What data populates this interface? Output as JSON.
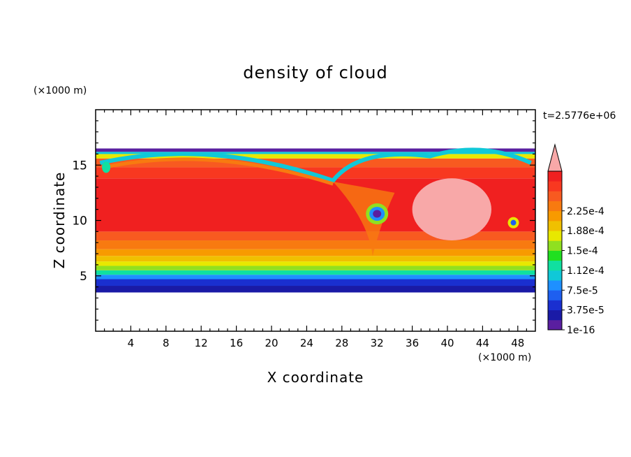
{
  "chart_data": {
    "type": "heatmap",
    "title": "density of cloud",
    "xlabel": "X coordinate",
    "ylabel": "Z coordinate",
    "x_unit": "(×1000 m)",
    "y_unit": "(×1000 m)",
    "time_label": "t=2.5776e+06",
    "xlim": [
      0,
      50
    ],
    "ylim": [
      0,
      20
    ],
    "x_ticks": [
      "4",
      "8",
      "12",
      "16",
      "20",
      "24",
      "28",
      "32",
      "36",
      "40",
      "44",
      "48"
    ],
    "y_ticks": [
      "5",
      "10",
      "15"
    ],
    "colorbar": {
      "labels": [
        "1e-16",
        "3.75e-5",
        "7.5e-5",
        "1.12e-4",
        "1.5e-4",
        "1.88e-4",
        "2.25e-4"
      ],
      "colors": [
        "#5a1fa0",
        "#1a1aa6",
        "#1a2fd0",
        "#1e5ff0",
        "#1e90ff",
        "#10c8d8",
        "#10e0a0",
        "#20e020",
        "#90e020",
        "#e8e800",
        "#f0c000",
        "#f89a00",
        "#f87a10",
        "#f85a20",
        "#f83820",
        "#f02020"
      ],
      "extend_color": "#f8a8a8"
    },
    "field": {
      "domain_x": [
        0,
        50
      ],
      "z_bottom": 3.5,
      "z_top_approx": 16.5,
      "features": [
        {
          "name": "core",
          "z_range": [
            7,
            14
          ],
          "value": 0.00023
        },
        {
          "name": "vortex",
          "x": 32,
          "z": 10.6,
          "value": 1e-16
        },
        {
          "name": "vortex",
          "x": 47.5,
          "z": 9.8,
          "value": 7.5e-05
        },
        {
          "name": "high-density-patch",
          "x_range": [
            36,
            45
          ],
          "z_range": [
            9.5,
            12.5
          ],
          "value": 0.00024
        }
      ]
    }
  }
}
